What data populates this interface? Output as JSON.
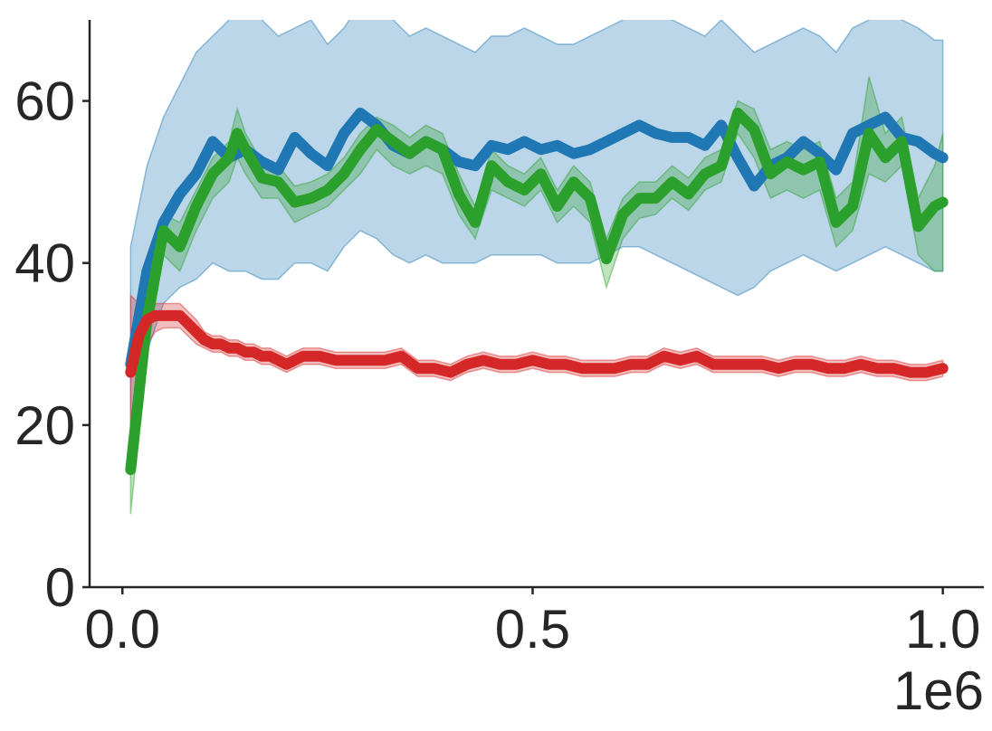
{
  "chart_data": {
    "type": "line",
    "title": "",
    "xlabel": "",
    "ylabel": "",
    "x_offset_label": "1e6",
    "xlim": [
      -40000,
      1050000
    ],
    "ylim": [
      0,
      70
    ],
    "xticks": [
      0,
      500000,
      1000000
    ],
    "xtick_labels": [
      "0.0",
      "0.5",
      "1.0"
    ],
    "yticks": [
      0,
      20,
      40,
      60
    ],
    "ytick_labels": [
      "0",
      "20",
      "40",
      "60"
    ],
    "grid": false,
    "legend": "none",
    "colors": {
      "blue": "#1f77b4",
      "green": "#2ca02c",
      "red": "#d62728"
    },
    "series": [
      {
        "color": "#1f77b4",
        "x": [
          10000,
          30000,
          50000,
          70000,
          90000,
          110000,
          130000,
          150000,
          170000,
          190000,
          210000,
          230000,
          250000,
          270000,
          290000,
          310000,
          330000,
          350000,
          370000,
          390000,
          410000,
          430000,
          450000,
          470000,
          490000,
          510000,
          530000,
          550000,
          570000,
          590000,
          610000,
          630000,
          650000,
          670000,
          690000,
          710000,
          730000,
          750000,
          770000,
          790000,
          810000,
          830000,
          850000,
          870000,
          890000,
          910000,
          930000,
          950000,
          970000,
          990000,
          1000000
        ],
        "y": [
          27.5,
          39,
          45,
          48.5,
          51,
          55,
          53,
          54,
          52.5,
          51.5,
          55.5,
          53.5,
          52,
          56,
          58.5,
          57,
          54.5,
          53.5,
          55,
          54,
          52.5,
          52,
          54.5,
          54,
          55,
          54,
          54.5,
          53.5,
          54,
          55,
          56,
          57,
          56,
          55.5,
          55.5,
          54.5,
          57,
          53,
          49.5,
          52,
          53,
          55,
          53.5,
          51.5,
          56,
          57,
          58,
          55.5,
          55,
          53.5,
          53
        ],
        "band_upper": [
          42,
          52,
          58,
          62,
          66,
          68,
          70,
          72,
          70,
          68,
          69,
          70,
          67,
          69,
          72,
          73,
          70,
          68,
          69,
          68,
          67,
          66,
          68,
          68,
          69,
          68,
          67,
          67,
          68,
          69,
          70,
          72,
          71,
          70,
          69,
          68,
          70,
          68,
          66,
          67,
          68,
          69,
          68,
          66,
          69,
          70,
          71,
          70,
          69,
          67.5,
          67.5
        ],
        "band_lower": [
          14,
          29,
          35,
          37,
          38,
          40,
          39,
          39,
          38,
          38,
          40,
          40,
          39,
          42,
          44,
          43,
          41,
          40,
          41,
          40,
          40,
          40,
          41,
          41,
          41,
          41,
          40,
          40,
          40,
          41,
          42,
          42,
          41,
          40,
          39,
          38,
          37,
          36,
          37,
          39,
          40,
          41,
          40,
          39,
          40,
          41,
          42,
          41,
          40,
          39,
          39
        ]
      },
      {
        "color": "#2ca02c",
        "x": [
          10000,
          30000,
          50000,
          70000,
          90000,
          110000,
          130000,
          140000,
          150000,
          170000,
          190000,
          210000,
          230000,
          250000,
          270000,
          290000,
          310000,
          330000,
          350000,
          370000,
          390000,
          410000,
          430000,
          450000,
          470000,
          490000,
          510000,
          530000,
          550000,
          570000,
          590000,
          610000,
          630000,
          650000,
          670000,
          690000,
          710000,
          730000,
          750000,
          770000,
          790000,
          810000,
          830000,
          850000,
          870000,
          890000,
          910000,
          930000,
          950000,
          970000,
          990000,
          1000000
        ],
        "y": [
          14.5,
          33,
          44,
          42,
          47,
          51,
          53,
          56,
          54,
          50.5,
          50,
          47.5,
          48,
          49,
          51,
          54,
          56.5,
          55,
          53.5,
          55,
          54,
          48.5,
          45,
          52,
          50,
          49,
          51,
          47,
          50,
          48,
          40.5,
          46,
          48,
          48,
          50,
          48.5,
          51,
          52,
          58.5,
          56.5,
          51,
          52.5,
          51.5,
          52.5,
          45,
          47,
          56,
          53,
          55,
          44.5,
          47,
          47.5
        ],
        "band_upper": [
          18,
          36,
          46,
          45,
          49,
          53,
          55,
          59,
          56,
          52.5,
          52,
          49.5,
          50,
          51,
          53,
          56,
          58,
          57,
          55.5,
          57,
          56,
          51,
          47,
          54,
          52,
          51,
          53,
          49,
          52,
          50,
          43,
          48,
          50,
          50,
          52,
          50.5,
          53,
          54,
          60,
          59,
          54,
          55,
          54,
          55,
          48,
          50,
          63,
          56,
          58,
          48,
          52,
          56
        ],
        "band_lower": [
          9,
          29,
          41,
          39,
          44,
          48,
          50,
          53,
          51,
          48,
          48,
          45,
          46,
          47,
          49,
          51,
          54,
          52,
          51,
          52,
          51,
          46,
          43,
          49,
          48,
          47,
          49,
          45,
          47,
          45,
          37,
          43,
          45.5,
          46,
          48,
          46.5,
          49,
          50,
          56,
          53,
          48,
          49,
          48,
          49,
          42,
          44,
          51,
          50,
          52,
          41,
          39,
          39
        ]
      },
      {
        "color": "#d62728",
        "x": [
          10000,
          20000,
          30000,
          40000,
          50000,
          60000,
          70000,
          80000,
          90000,
          100000,
          110000,
          120000,
          130000,
          140000,
          150000,
          160000,
          170000,
          180000,
          190000,
          200000,
          220000,
          240000,
          260000,
          280000,
          300000,
          320000,
          340000,
          360000,
          380000,
          400000,
          420000,
          440000,
          460000,
          480000,
          500000,
          520000,
          540000,
          560000,
          580000,
          600000,
          620000,
          640000,
          660000,
          680000,
          700000,
          720000,
          740000,
          760000,
          780000,
          800000,
          820000,
          840000,
          860000,
          880000,
          900000,
          920000,
          940000,
          960000,
          980000,
          1000000
        ],
        "y": [
          26.5,
          31,
          33,
          33.5,
          33.5,
          33.5,
          33.5,
          32.5,
          31.5,
          30.5,
          30,
          30,
          29.5,
          29.5,
          29,
          29,
          28.5,
          28.5,
          28,
          27.5,
          28.5,
          28.5,
          28,
          28,
          28,
          28,
          28.5,
          27,
          27,
          26.5,
          27.5,
          28,
          27.5,
          27.5,
          28,
          27.5,
          27.5,
          27,
          27,
          27,
          27.5,
          27.5,
          28.5,
          28,
          28.5,
          27.5,
          27.5,
          27.5,
          27.5,
          27,
          27.5,
          27.5,
          27,
          27,
          27.5,
          27,
          27,
          26.5,
          26.5,
          27
        ],
        "band_upper": [
          36,
          35,
          35,
          35,
          35,
          35,
          35,
          34,
          33,
          31.5,
          31,
          31,
          30.5,
          30.5,
          30,
          30,
          29.5,
          29.5,
          29,
          28.5,
          29.5,
          29.5,
          29,
          29,
          29,
          29,
          29.5,
          28,
          28,
          27.5,
          28.5,
          29,
          28.5,
          28.5,
          29,
          28.5,
          28.5,
          28,
          28,
          28,
          28.5,
          28.5,
          29.5,
          29,
          29.5,
          28.5,
          28.5,
          28.5,
          28.5,
          28,
          28.5,
          28.5,
          28,
          28,
          28.5,
          28,
          28,
          27.5,
          27.5,
          28
        ],
        "band_lower": [
          20,
          26,
          30,
          31.5,
          32,
          32,
          32,
          31,
          30,
          29.5,
          29,
          29,
          28.5,
          28.5,
          28,
          28,
          27.5,
          27.5,
          27,
          26.5,
          27.5,
          27.5,
          27,
          27,
          27,
          27,
          27.5,
          26,
          26,
          25.5,
          26.5,
          27,
          26.5,
          26.5,
          27,
          26.5,
          26.5,
          26,
          26,
          26,
          26.5,
          26.5,
          27.5,
          27,
          27.5,
          26.5,
          26.5,
          26.5,
          26.5,
          26,
          26.5,
          26.5,
          26,
          26,
          26.5,
          26,
          26,
          25.5,
          25.5,
          26
        ]
      }
    ]
  }
}
